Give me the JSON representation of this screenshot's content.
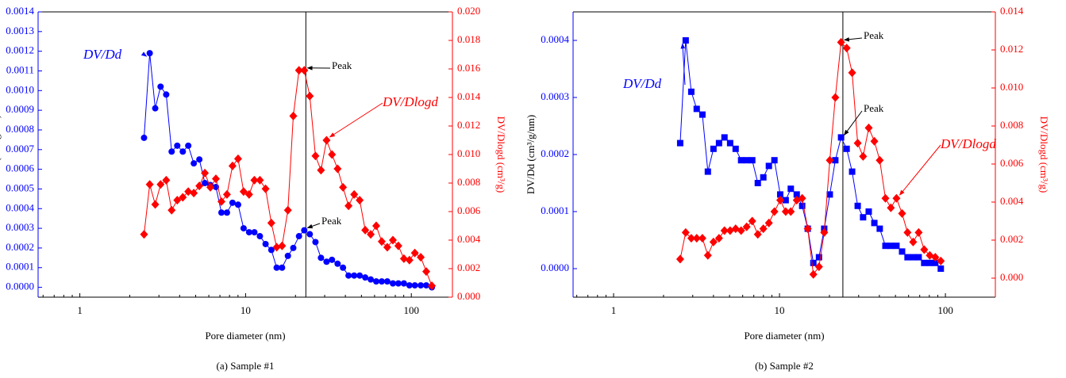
{
  "chart_data": [
    {
      "type": "line",
      "caption": "(a)  Sample #1",
      "xlabel": "Pore diameter (nm)",
      "ylabel": "DV/Dd (cm³/g/nm)",
      "y2label": "DV/Dlogd (cm³/g)",
      "log_x": true,
      "xlim": [
        0.56,
        177
      ],
      "xticks": [
        1,
        10,
        100
      ],
      "ylim": [
        -5e-05,
        0.0014
      ],
      "yticks": [
        {
          "value": 0,
          "label": "0.0000"
        },
        {
          "value": 0.0001,
          "label": "0.0001"
        },
        {
          "value": 0.0002,
          "label": "0.0002"
        },
        {
          "value": 0.0003,
          "label": "0.0003"
        },
        {
          "value": 0.0004,
          "label": "0.0004"
        },
        {
          "value": 0.0005,
          "label": "0.0005"
        },
        {
          "value": 0.0006,
          "label": "0.0006"
        },
        {
          "value": 0.0007,
          "label": "0.0007"
        },
        {
          "value": 0.0008,
          "label": "0.0008"
        },
        {
          "value": 0.0009,
          "label": "0.0009"
        },
        {
          "value": 0.001,
          "label": "0.0010"
        },
        {
          "value": 0.0011,
          "label": "0.0011"
        },
        {
          "value": 0.0012,
          "label": "0.0012"
        },
        {
          "value": 0.0013,
          "label": "0.0013"
        },
        {
          "value": 0.0014,
          "label": "0.0014"
        }
      ],
      "y2lim": [
        0,
        0.02
      ],
      "y2ticks": [
        {
          "value": 0,
          "label": "0.000"
        },
        {
          "value": 0.002,
          "label": "0.002"
        },
        {
          "value": 0.004,
          "label": "0.004"
        },
        {
          "value": 0.006,
          "label": "0.006"
        },
        {
          "value": 0.008,
          "label": "0.008"
        },
        {
          "value": 0.01,
          "label": "0.010"
        },
        {
          "value": 0.012,
          "label": "0.012"
        },
        {
          "value": 0.014,
          "label": "0.014"
        },
        {
          "value": 0.016,
          "label": "0.016"
        },
        {
          "value": 0.018,
          "label": "0.018"
        },
        {
          "value": 0.02,
          "label": "0.020"
        }
      ],
      "vline": 23.1,
      "annotations": [
        "Peak",
        "Peak"
      ],
      "x": [
        2.44,
        2.64,
        2.85,
        3.07,
        3.32,
        3.58,
        3.87,
        4.18,
        4.51,
        4.87,
        5.26,
        5.68,
        6.13,
        6.62,
        7.15,
        7.72,
        8.34,
        9.01,
        9.73,
        10.5,
        11.3,
        12.2,
        13.2,
        14.3,
        15.4,
        16.6,
        18.0,
        19.4,
        21.0,
        22.6,
        24.4,
        26.4,
        28.5,
        30.8,
        33.2,
        35.9,
        38.7,
        41.8,
        45.2,
        48.8,
        52.7,
        56.9,
        61.4,
        66.3,
        71.6,
        77.4,
        83.5,
        90.2,
        97.4,
        105,
        114,
        123,
        133
      ],
      "series": [
        {
          "name": "DV/Dd",
          "color": "#0000ff",
          "marker": "circle",
          "values": [
            0.00076,
            0.00119,
            0.00091,
            0.00102,
            0.00098,
            0.00069,
            0.00072,
            0.00069,
            0.00072,
            0.00063,
            0.00065,
            0.00053,
            0.00052,
            0.00051,
            0.00038,
            0.00038,
            0.00043,
            0.00042,
            0.0003,
            0.00028,
            0.00028,
            0.00026,
            0.00022,
            0.00019,
            0.0001,
            0.0001,
            0.00016,
            0.0002,
            0.00026,
            0.00029,
            0.00027,
            0.00023,
            0.00015,
            0.00013,
            0.00014,
            0.00012,
            0.0001,
            6e-05,
            6e-05,
            6e-05,
            5e-05,
            4e-05,
            3e-05,
            3e-05,
            3e-05,
            2e-05,
            2e-05,
            2e-05,
            1e-05,
            1e-05,
            1e-05,
            1e-05,
            0.0
          ]
        },
        {
          "name": "DV/Dlogd",
          "color": "#ff0000",
          "marker": "diamond",
          "axis": "y2",
          "values": [
            0.0044,
            0.0079,
            0.0065,
            0.0079,
            0.0082,
            0.0061,
            0.0068,
            0.007,
            0.0074,
            0.0073,
            0.0078,
            0.0087,
            0.0077,
            0.0083,
            0.0067,
            0.0072,
            0.0092,
            0.0097,
            0.0074,
            0.0072,
            0.0082,
            0.0082,
            0.0076,
            0.0052,
            0.0035,
            0.0036,
            0.0061,
            0.0127,
            0.0159,
            0.0159,
            0.0141,
            0.0099,
            0.0089,
            0.011,
            0.01,
            0.009,
            0.0077,
            0.0064,
            0.0072,
            0.0068,
            0.0047,
            0.0044,
            0.005,
            0.0039,
            0.0035,
            0.004,
            0.0036,
            0.0027,
            0.0026,
            0.0031,
            0.0028,
            0.0018,
            0.0008
          ]
        }
      ]
    },
    {
      "type": "line",
      "caption": "(b)  Sample #2",
      "xlabel": "Pore diameter (nm)",
      "ylabel": "DV/Dd (cm³/g/nm)",
      "y2label": "DV/Dlogd (cm³/g)",
      "log_x": true,
      "xlim": [
        0.57,
        200
      ],
      "xticks": [
        1,
        10,
        100
      ],
      "ylim": [
        -5e-05,
        0.00045
      ],
      "yticks": [
        {
          "value": 0,
          "label": "0.0000"
        },
        {
          "value": 0.0001,
          "label": "0.0001"
        },
        {
          "value": 0.0002,
          "label": "0.0002"
        },
        {
          "value": 0.0003,
          "label": "0.0003"
        },
        {
          "value": 0.0004,
          "label": "0.0004"
        }
      ],
      "y2lim": [
        -0.001,
        0.014
      ],
      "y2ticks": [
        {
          "value": 0,
          "label": "0.000"
        },
        {
          "value": 0.002,
          "label": "0.002"
        },
        {
          "value": 0.004,
          "label": "0.004"
        },
        {
          "value": 0.006,
          "label": "0.006"
        },
        {
          "value": 0.008,
          "label": "0.008"
        },
        {
          "value": 0.01,
          "label": "0.010"
        },
        {
          "value": 0.012,
          "label": "0.012"
        },
        {
          "value": 0.014,
          "label": "0.014"
        }
      ],
      "vline": 24.1,
      "annotations": [
        "Peak",
        "Peak"
      ],
      "x": [
        2.52,
        2.72,
        2.94,
        3.17,
        3.43,
        3.7,
        4.0,
        4.32,
        4.66,
        5.04,
        5.44,
        5.87,
        6.34,
        6.85,
        7.4,
        7.99,
        8.63,
        9.32,
        10.1,
        10.9,
        11.7,
        12.7,
        13.7,
        14.8,
        16.0,
        17.3,
        18.6,
        20.1,
        21.7,
        23.5,
        25.4,
        27.4,
        29.6,
        31.9,
        34.5,
        37.3,
        40.2,
        43.5,
        46.9,
        50.7,
        54.8,
        59.1,
        63.9,
        69.0,
        74.5,
        80.5,
        86.9,
        93.8
      ],
      "series": [
        {
          "name": "DV/Dd",
          "color": "#0000ff",
          "marker": "square",
          "values": [
            0.00022,
            0.0004,
            0.00031,
            0.00028,
            0.00027,
            0.00017,
            0.00021,
            0.00022,
            0.00023,
            0.00022,
            0.00021,
            0.00019,
            0.00019,
            0.00019,
            0.00015,
            0.00016,
            0.00018,
            0.00019,
            0.00013,
            0.00012,
            0.00014,
            0.00013,
            0.00011,
            7e-05,
            1e-05,
            2e-05,
            7e-05,
            0.00013,
            0.00019,
            0.00023,
            0.00021,
            0.00017,
            0.00011,
            9e-05,
            0.0001,
            8e-05,
            7e-05,
            4e-05,
            4e-05,
            4e-05,
            3e-05,
            2e-05,
            2e-05,
            2e-05,
            1e-05,
            1e-05,
            1e-05,
            0.0
          ]
        },
        {
          "name": "DV/Dlogd",
          "color": "#ff0000",
          "marker": "diamond",
          "axis": "y2",
          "values": [
            0.001,
            0.0024,
            0.0021,
            0.0021,
            0.0021,
            0.0012,
            0.0019,
            0.0021,
            0.0025,
            0.0025,
            0.0026,
            0.0025,
            0.0027,
            0.003,
            0.0023,
            0.0026,
            0.0029,
            0.0035,
            0.0041,
            0.0035,
            0.0035,
            0.0041,
            0.0042,
            0.0026,
            0.0002,
            0.0006,
            0.0024,
            0.0062,
            0.0095,
            0.0124,
            0.0121,
            0.0108,
            0.0071,
            0.0064,
            0.0079,
            0.0072,
            0.0062,
            0.0042,
            0.0037,
            0.0042,
            0.0034,
            0.0024,
            0.0019,
            0.0024,
            0.0015,
            0.0012,
            0.0011,
            0.0009
          ]
        }
      ]
    }
  ]
}
